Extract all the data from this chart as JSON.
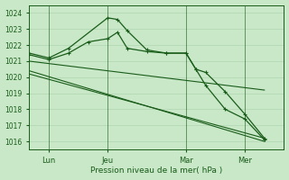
{
  "title": "",
  "xlabel": "Pression niveau de la mer( hPa )",
  "background_color": "#c8e8c8",
  "grid_color": "#b0d4b0",
  "line_color": "#1a5c1a",
  "ylim": [
    1015.5,
    1024.5
  ],
  "yticks": [
    1016,
    1017,
    1018,
    1019,
    1020,
    1021,
    1022,
    1023,
    1024
  ],
  "xtick_labels": [
    "Lun",
    "Jeu",
    "Mar",
    "Mer"
  ],
  "xtick_positions": [
    1,
    4,
    8,
    11
  ],
  "xlim": [
    0,
    13
  ],
  "series_with_markers": [
    {
      "x": [
        0,
        1,
        2,
        4,
        4.5,
        5,
        6,
        7,
        8,
        8.5,
        9,
        10,
        11,
        12
      ],
      "y": [
        1021.5,
        1021.2,
        1021.8,
        1023.7,
        1023.6,
        1022.9,
        1021.7,
        1021.5,
        1021.5,
        1020.5,
        1020.3,
        1019.1,
        1017.7,
        1016.2
      ]
    },
    {
      "x": [
        0,
        1,
        2,
        3,
        4,
        4.5,
        5,
        6,
        7,
        8,
        8.5,
        9,
        10,
        11,
        12
      ],
      "y": [
        1021.4,
        1021.1,
        1021.5,
        1022.2,
        1022.4,
        1022.8,
        1021.8,
        1021.6,
        1021.5,
        1021.5,
        1020.5,
        1019.5,
        1018.0,
        1017.4,
        1016.1
      ]
    }
  ],
  "series_trend": [
    {
      "x": [
        0,
        12
      ],
      "y": [
        1021.0,
        1019.2
      ]
    },
    {
      "x": [
        0,
        12
      ],
      "y": [
        1020.4,
        1016.0
      ]
    },
    {
      "x": [
        0,
        12
      ],
      "y": [
        1020.2,
        1016.2
      ]
    }
  ]
}
